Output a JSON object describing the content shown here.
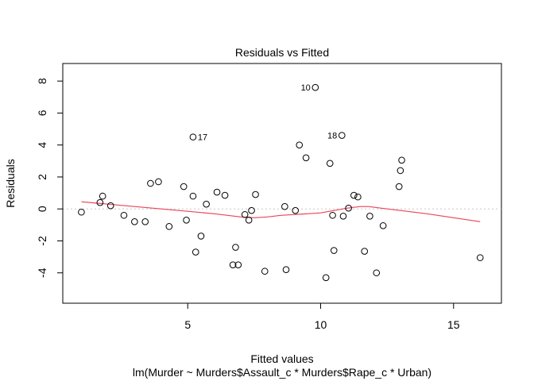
{
  "chart_data": {
    "type": "scatter",
    "title": "Residuals vs Fitted",
    "xlabel": "Fitted values",
    "subtitle": "lm(Murder ~ Murders$Assault_c * Murders$Rape_c * Urban)",
    "ylabel": "Residuals",
    "xlim": [
      0.3,
      16.8
    ],
    "ylim": [
      -5.9,
      9.1
    ],
    "xticks": [
      5,
      10,
      15
    ],
    "yticks": [
      -4,
      -2,
      0,
      2,
      4,
      6,
      8
    ],
    "reference_line": {
      "y": 0,
      "style": "dotted",
      "color": "#c8c8c8"
    },
    "point_color": "#000000",
    "smooth_color": "#e8455a",
    "points": [
      {
        "x": 1.0,
        "y": -0.2
      },
      {
        "x": 1.7,
        "y": 0.4
      },
      {
        "x": 1.8,
        "y": 0.8
      },
      {
        "x": 2.1,
        "y": 0.2
      },
      {
        "x": 2.6,
        "y": -0.4
      },
      {
        "x": 3.0,
        "y": -0.8
      },
      {
        "x": 3.4,
        "y": -0.8
      },
      {
        "x": 3.6,
        "y": 1.6
      },
      {
        "x": 3.9,
        "y": 1.7
      },
      {
        "x": 4.3,
        "y": -1.1
      },
      {
        "x": 4.85,
        "y": 1.4
      },
      {
        "x": 4.95,
        "y": -0.7
      },
      {
        "x": 5.2,
        "y": 4.5,
        "label": "17"
      },
      {
        "x": 5.2,
        "y": 0.8
      },
      {
        "x": 5.3,
        "y": -2.7
      },
      {
        "x": 5.5,
        "y": -1.7
      },
      {
        "x": 5.7,
        "y": 0.3
      },
      {
        "x": 6.1,
        "y": 1.05
      },
      {
        "x": 6.4,
        "y": 0.85
      },
      {
        "x": 6.7,
        "y": -3.5
      },
      {
        "x": 6.8,
        "y": -2.4
      },
      {
        "x": 6.9,
        "y": -3.5
      },
      {
        "x": 7.15,
        "y": -0.35
      },
      {
        "x": 7.3,
        "y": -0.7
      },
      {
        "x": 7.4,
        "y": -0.1
      },
      {
        "x": 7.55,
        "y": 0.9
      },
      {
        "x": 7.9,
        "y": -3.9
      },
      {
        "x": 8.65,
        "y": 0.15
      },
      {
        "x": 8.7,
        "y": -3.8
      },
      {
        "x": 9.05,
        "y": -0.1
      },
      {
        "x": 9.2,
        "y": 4.0
      },
      {
        "x": 9.45,
        "y": 3.2
      },
      {
        "x": 9.8,
        "y": 7.6,
        "label": "10"
      },
      {
        "x": 10.2,
        "y": -4.3
      },
      {
        "x": 10.35,
        "y": 2.85
      },
      {
        "x": 10.45,
        "y": -0.4
      },
      {
        "x": 10.5,
        "y": -2.6
      },
      {
        "x": 10.8,
        "y": 4.6,
        "label": "18"
      },
      {
        "x": 10.85,
        "y": -0.45
      },
      {
        "x": 11.05,
        "y": 0.05
      },
      {
        "x": 11.25,
        "y": 0.85
      },
      {
        "x": 11.4,
        "y": 0.75
      },
      {
        "x": 11.65,
        "y": -2.65
      },
      {
        "x": 11.85,
        "y": -0.45
      },
      {
        "x": 12.1,
        "y": -4.0
      },
      {
        "x": 12.35,
        "y": -1.05
      },
      {
        "x": 12.95,
        "y": 1.4
      },
      {
        "x": 13.0,
        "y": 2.4
      },
      {
        "x": 13.05,
        "y": 3.05
      },
      {
        "x": 16.0,
        "y": -3.05
      }
    ],
    "smooth": [
      [
        1.0,
        0.45
      ],
      [
        2.0,
        0.3
      ],
      [
        3.0,
        0.15
      ],
      [
        4.0,
        0.0
      ],
      [
        5.0,
        -0.15
      ],
      [
        6.0,
        -0.3
      ],
      [
        6.5,
        -0.4
      ],
      [
        7.0,
        -0.5
      ],
      [
        7.5,
        -0.55
      ],
      [
        8.0,
        -0.5
      ],
      [
        8.5,
        -0.4
      ],
      [
        9.0,
        -0.35
      ],
      [
        9.5,
        -0.3
      ],
      [
        10.0,
        -0.25
      ],
      [
        10.5,
        -0.1
      ],
      [
        11.0,
        0.05
      ],
      [
        11.5,
        0.15
      ],
      [
        11.8,
        0.15
      ],
      [
        12.5,
        0.0
      ],
      [
        13.0,
        -0.1
      ],
      [
        14.0,
        -0.3
      ],
      [
        15.0,
        -0.55
      ],
      [
        16.0,
        -0.8
      ]
    ]
  }
}
